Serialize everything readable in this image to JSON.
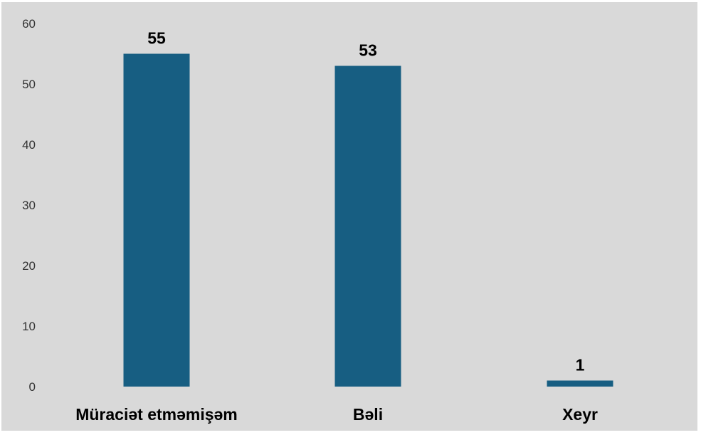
{
  "colors": {
    "background": "#d9d9d9",
    "bar": "#175e82"
  },
  "chart_data": {
    "type": "bar",
    "categories": [
      "Müraciət etməmişəm",
      "Bəli",
      "Xeyr"
    ],
    "values": [
      55,
      53,
      1
    ],
    "ylim": [
      0,
      60
    ],
    "yticks": [
      "0",
      "10",
      "20",
      "30",
      "40",
      "50",
      "60"
    ],
    "grid": false,
    "legend": "none",
    "data_labels": [
      "55",
      "53",
      "1"
    ]
  }
}
